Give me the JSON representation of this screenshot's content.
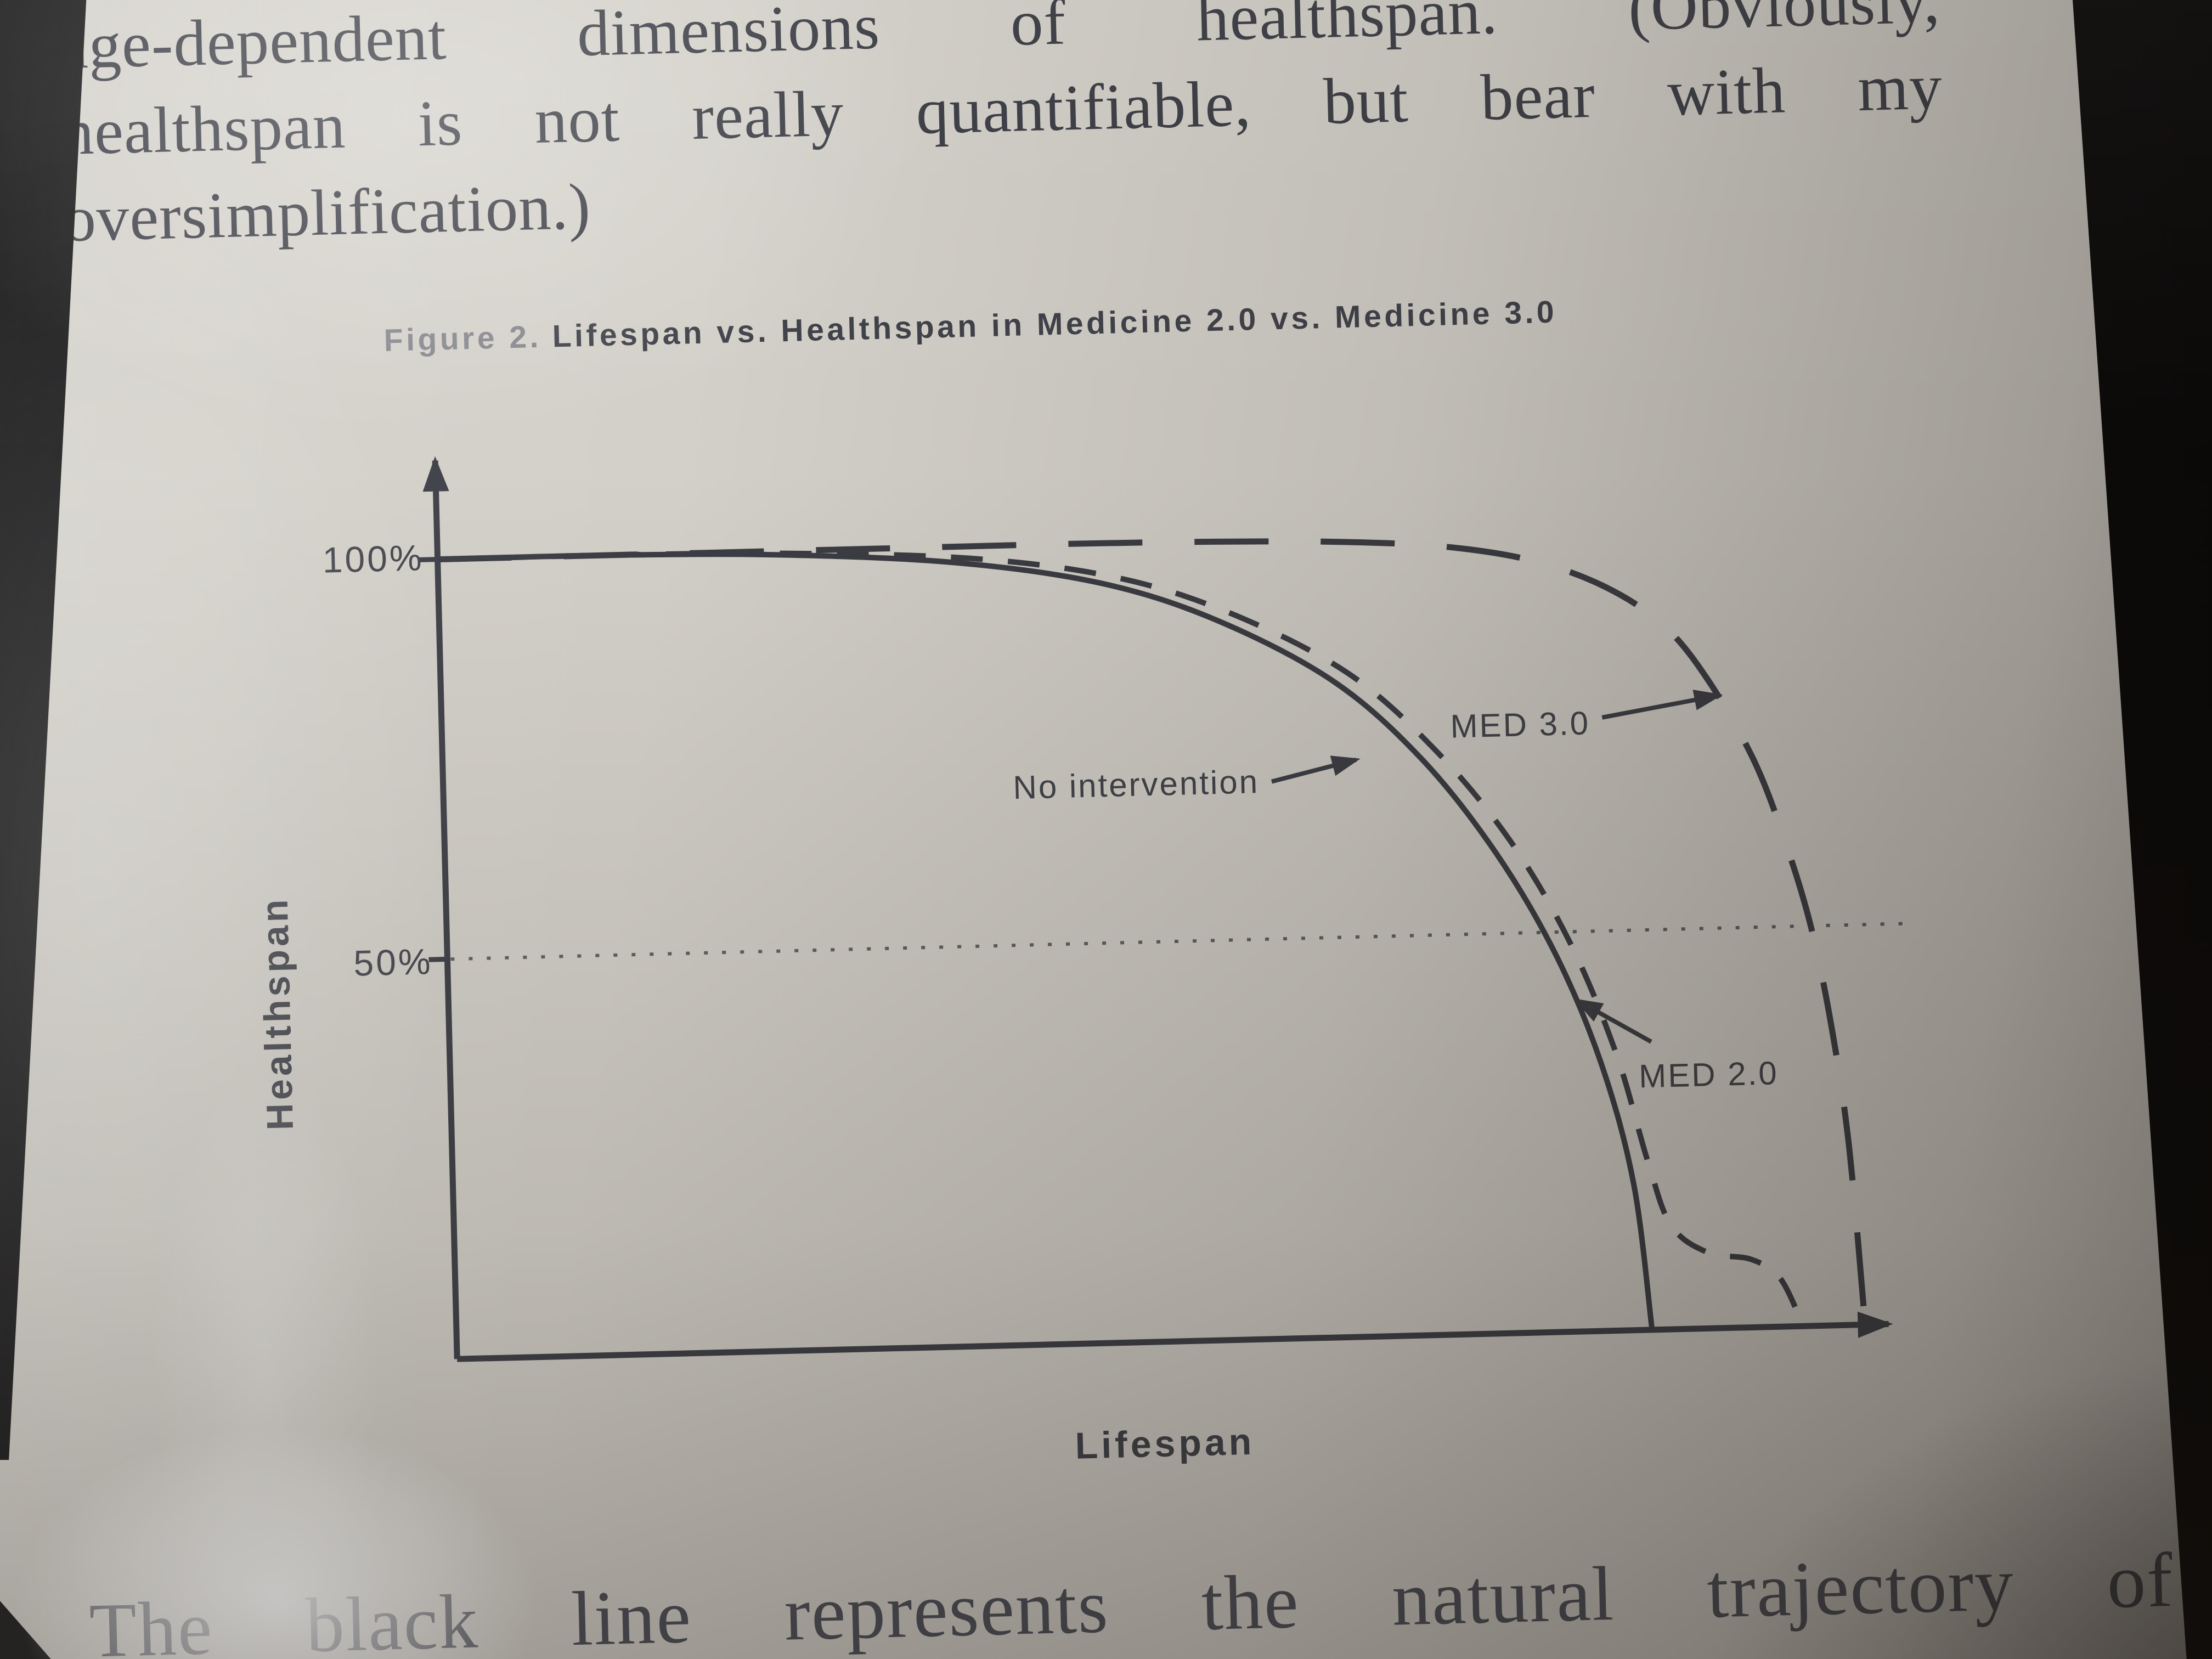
{
  "page": {
    "top_text": {
      "line1": "age-dependent dimensions of healthspan. (Obviously,",
      "line2": "healthspan is not really quantifiable, but bear with my",
      "line3": "oversimplification.)"
    },
    "bottom_text": "The black line represents the natural trajectory of"
  },
  "figure": {
    "label": "Figure 2.",
    "title": "Lifespan vs. Healthspan in Medicine 2.0 vs. Medicine 3.0"
  },
  "chart": {
    "ylabel": "Healthspan",
    "xlabel": "Lifespan",
    "ytick_100": "100%",
    "ytick_50": "50%",
    "annotations": {
      "no_intervention": "No intervention",
      "med30": "MED 3.0",
      "med20": "MED 2.0"
    },
    "ink_color": "#3d3f46",
    "paper_color": "#d3d0c9"
  },
  "chart_data": {
    "type": "line",
    "title": "Figure 2. Lifespan vs. Healthspan in Medicine 2.0 vs. Medicine 3.0",
    "xlabel": "Lifespan",
    "ylabel": "Healthspan",
    "xlim": [
      0,
      100
    ],
    "ylim": [
      0,
      100
    ],
    "x_units": "percent of lifespan axis (no numeric ticks shown)",
    "y_units": "percent healthspan",
    "yticks_pct": [
      100,
      50
    ],
    "grid": "horizontal dotted reference line at 50% only",
    "legend_position": "inline arrow annotations on plot",
    "series": [
      {
        "name": "No intervention",
        "line_style": "solid",
        "points": [
          [
            0,
            100
          ],
          [
            12,
            100
          ],
          [
            24,
            99.5
          ],
          [
            36,
            98
          ],
          [
            46,
            95
          ],
          [
            54,
            90
          ],
          [
            62,
            82
          ],
          [
            68,
            72
          ],
          [
            73,
            60
          ],
          [
            77,
            47
          ],
          [
            80,
            33
          ],
          [
            82,
            18
          ],
          [
            83,
            0
          ]
        ]
      },
      {
        "name": "MED 2.0",
        "line_style": "short-dash",
        "points": [
          [
            0,
            100
          ],
          [
            12,
            100
          ],
          [
            24,
            99.7
          ],
          [
            37,
            98.5
          ],
          [
            47,
            95.7
          ],
          [
            55,
            90.8
          ],
          [
            63,
            83
          ],
          [
            69,
            73
          ],
          [
            74,
            61.5
          ],
          [
            78,
            48.5
          ],
          [
            81,
            34.5
          ],
          [
            83,
            21
          ],
          [
            84.5,
            13
          ],
          [
            87,
            9.5
          ],
          [
            90,
            8.5
          ],
          [
            92,
            6
          ],
          [
            93.5,
            0
          ]
        ]
      },
      {
        "name": "MED 3.0",
        "line_style": "long-dash",
        "points": [
          [
            0,
            100
          ],
          [
            15,
            100
          ],
          [
            30,
            100
          ],
          [
            45,
            100
          ],
          [
            55,
            99.8
          ],
          [
            63,
            99.4
          ],
          [
            70,
            98.5
          ],
          [
            76,
            96.5
          ],
          [
            81,
            93
          ],
          [
            85,
            88
          ],
          [
            88,
            81
          ],
          [
            91,
            71
          ],
          [
            93,
            61
          ],
          [
            94.7,
            50
          ],
          [
            96,
            37
          ],
          [
            97,
            22
          ],
          [
            97.8,
            0
          ]
        ]
      }
    ]
  }
}
